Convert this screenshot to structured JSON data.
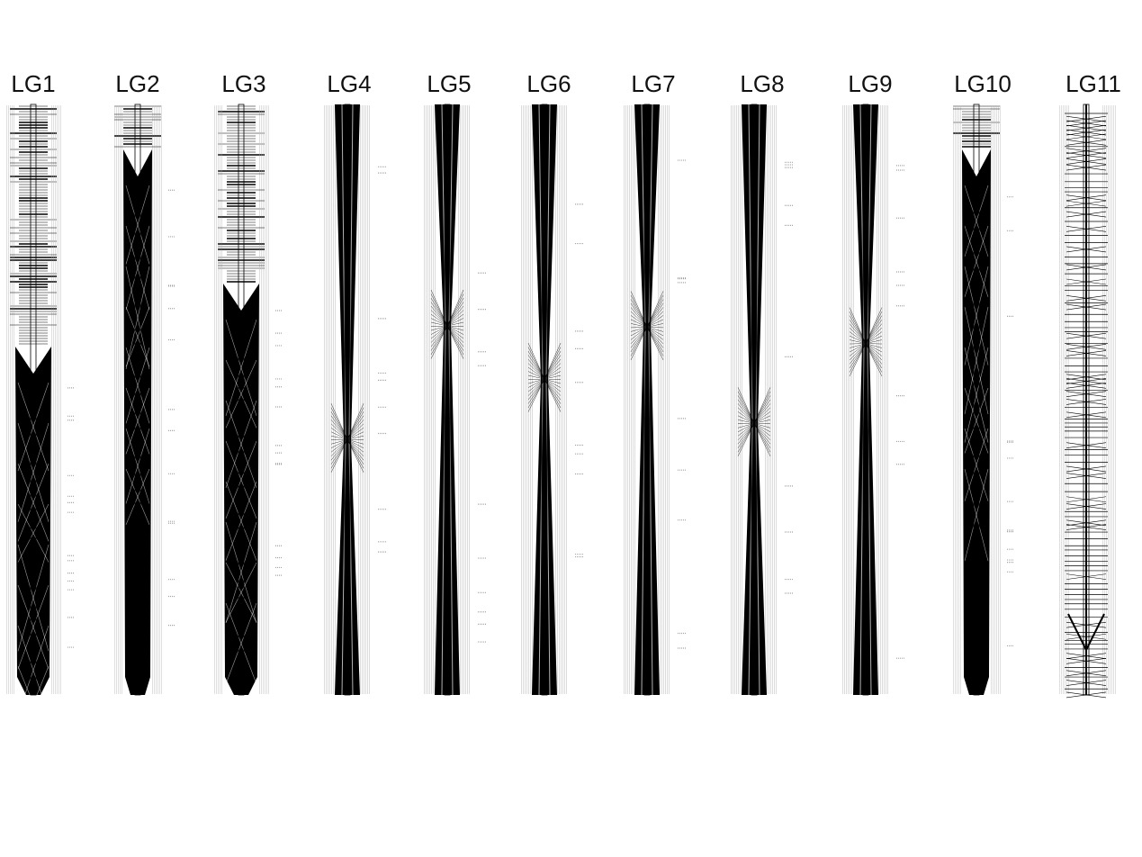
{
  "linkage_groups": [
    {
      "name": "LG1",
      "style": "dense-bottom"
    },
    {
      "name": "LG2",
      "style": "dense-full"
    },
    {
      "name": "LG3",
      "style": "dense-bottom"
    },
    {
      "name": "LG4",
      "style": "hourglass"
    },
    {
      "name": "LG5",
      "style": "hourglass"
    },
    {
      "name": "LG6",
      "style": "hourglass"
    },
    {
      "name": "LG7",
      "style": "hourglass"
    },
    {
      "name": "LG8",
      "style": "hourglass"
    },
    {
      "name": "LG9",
      "style": "hourglass"
    },
    {
      "name": "LG10",
      "style": "dense-full"
    },
    {
      "name": "LG11",
      "style": "sparse"
    }
  ],
  "colors": {
    "ink": "#000000",
    "marker_text": "#9a9a9a",
    "background": "#ffffff"
  }
}
